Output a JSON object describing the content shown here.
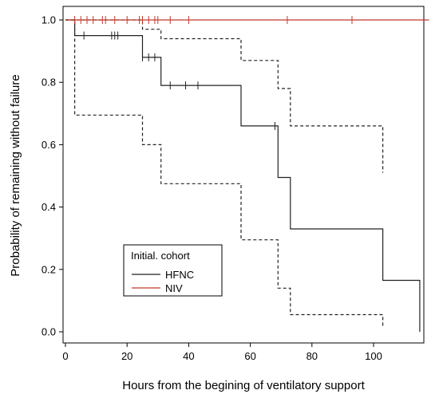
{
  "chart_data": {
    "type": "line",
    "subtype": "kaplan-meier",
    "xlabel": "Hours from the begining of ventilatory support",
    "ylabel": "Probability of remaining without failure",
    "xlim": [
      0,
      118
    ],
    "ylim": [
      0,
      1.0
    ],
    "xticks": [
      0,
      20,
      40,
      60,
      80,
      100
    ],
    "xtick_labels": [
      "0",
      "20",
      "40",
      "60",
      "80",
      "100"
    ],
    "yticks": [
      0.0,
      0.2,
      0.4,
      0.6,
      0.8,
      1.0
    ],
    "ytick_labels": [
      "0.0",
      "0.2",
      "0.4",
      "0.6",
      "0.8",
      "1.0"
    ],
    "grid": false,
    "legend": {
      "title": "Initial. cohort",
      "placement": "bottom-left",
      "entries": [
        {
          "label": "HFNC",
          "color": "#222222"
        },
        {
          "label": "NIV",
          "color": "#c0392b"
        }
      ]
    },
    "series": [
      {
        "name": "HFNC",
        "color": "#222222",
        "style": "solid",
        "steps": [
          [
            0,
            1.0
          ],
          [
            3,
            0.95
          ],
          [
            25,
            0.88
          ],
          [
            31,
            0.79
          ],
          [
            57,
            0.66
          ],
          [
            69,
            0.495
          ],
          [
            73,
            0.33
          ],
          [
            103,
            0.165
          ],
          [
            115,
            0.0
          ]
        ],
        "end_x": 115,
        "censor_times": [
          6,
          15,
          16,
          17,
          25,
          27,
          29,
          34,
          39,
          43,
          68
        ]
      },
      {
        "name": "HFNC 95% CI upper",
        "color": "#222222",
        "style": "dashed",
        "steps": [
          [
            0,
            1.0
          ],
          [
            25,
            0.97
          ],
          [
            31,
            0.94
          ],
          [
            57,
            0.87
          ],
          [
            69,
            0.78
          ],
          [
            73,
            0.66
          ],
          [
            103,
            0.51
          ]
        ],
        "end_x": 103,
        "censor_times": []
      },
      {
        "name": "HFNC 95% CI lower",
        "color": "#222222",
        "style": "dashed",
        "steps": [
          [
            0,
            1.0
          ],
          [
            3,
            0.695
          ],
          [
            25,
            0.6
          ],
          [
            31,
            0.475
          ],
          [
            57,
            0.295
          ],
          [
            69,
            0.14
          ],
          [
            73,
            0.055
          ],
          [
            103,
            0.015
          ]
        ],
        "end_x": 103,
        "censor_times": []
      },
      {
        "name": "NIV",
        "color": "#c0392b",
        "style": "solid",
        "steps": [
          [
            0,
            1.0
          ]
        ],
        "end_x": 118,
        "censor_times": [
          3,
          5,
          7,
          9,
          12,
          13,
          16,
          20,
          24,
          25,
          27,
          29,
          30,
          34,
          40,
          72,
          93
        ]
      }
    ]
  }
}
